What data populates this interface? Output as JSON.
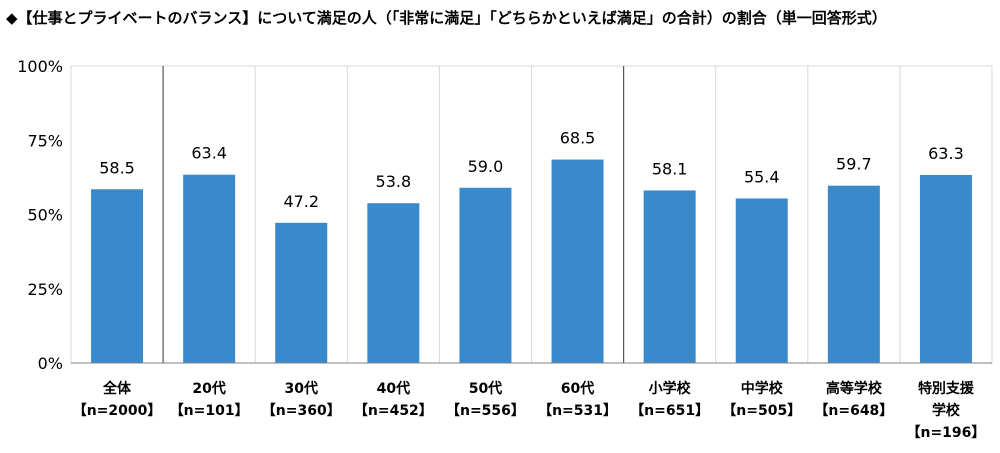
{
  "title": "◆【仕事とプライベートのバランス】について満足の人（「非常に満足」「どちらかといえば満足」の合計）の割合（単一回答形式）",
  "chart_data": {
    "type": "bar",
    "title": "◆【仕事とプライベートのバランス】について満足の人（「非常に満足」「どちらかといえば満足」の合計）の割合（単一回答形式）",
    "categories": [
      [
        "全体",
        "【n=2000】"
      ],
      [
        "20代",
        "【n=101】"
      ],
      [
        "30代",
        "【n=360】"
      ],
      [
        "40代",
        "【n=452】"
      ],
      [
        "50代",
        "【n=556】"
      ],
      [
        "60代",
        "【n=531】"
      ],
      [
        "小学校",
        "【n=651】"
      ],
      [
        "中学校",
        "【n=505】"
      ],
      [
        "高等学校",
        "【n=648】"
      ],
      [
        "特別支援",
        "学校",
        "【n=196】"
      ]
    ],
    "values": [
      58.5,
      63.4,
      47.2,
      53.8,
      59.0,
      68.5,
      58.1,
      55.4,
      59.7,
      63.3
    ],
    "data_labels": [
      "58.5",
      "63.4",
      "47.2",
      "53.8",
      "59.0",
      "68.5",
      "58.1",
      "55.4",
      "59.7",
      "63.3"
    ],
    "yticks": [
      0,
      25,
      50,
      75,
      100
    ],
    "ytick_labels": [
      "0%",
      "25%",
      "50%",
      "75%",
      "100%"
    ],
    "ylim": [
      0,
      100
    ],
    "xlabel": "",
    "ylabel": "",
    "grid": "vertical",
    "group_dividers_after": [
      0,
      5
    ],
    "bar_color": "#3A8ACB",
    "grid_color": "#D9D9D9",
    "divider_color": "#595959"
  }
}
